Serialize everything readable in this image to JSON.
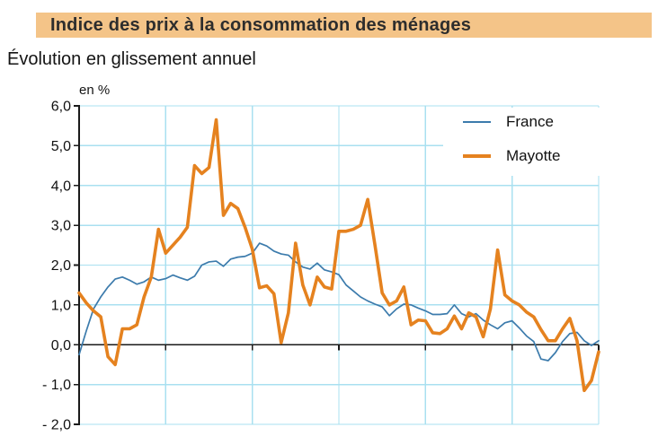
{
  "header": {
    "title": "Indice des prix à la consommation des ménages",
    "subtitle": "Évolution en glissement annuel"
  },
  "colors": {
    "title_band": "#F4C488",
    "grid": "#A9E0F0",
    "axis": "#1A1A1A",
    "tick_label": "#111111",
    "legend_background": "#FFFFFF"
  },
  "chart_data": {
    "type": "line",
    "title": "Indice des prix à la consommation des ménages",
    "subtitle": "Évolution en glissement annuel",
    "unit_label": "en %",
    "ylim": [
      -2,
      6
    ],
    "grid": true,
    "legend_position": "top-right",
    "x_axis": {
      "tick_labels_visible": false,
      "vertical_divisions": 6,
      "points_per_series": 73
    },
    "y_ticks": [
      {
        "value": 6,
        "label": "6,0"
      },
      {
        "value": 5,
        "label": "5,0"
      },
      {
        "value": 4,
        "label": "4,0"
      },
      {
        "value": 3,
        "label": "3,0"
      },
      {
        "value": 2,
        "label": "2,0"
      },
      {
        "value": 1,
        "label": "1,0"
      },
      {
        "value": 0,
        "label": "0,0"
      },
      {
        "value": -1,
        "label": "- 1,0"
      },
      {
        "value": -2,
        "label": "- 2,0"
      }
    ],
    "series": [
      {
        "name": "France",
        "color": "#3C7BAC",
        "stroke_width": 1.7,
        "values": [
          -0.25,
          0.35,
          0.9,
          1.2,
          1.45,
          1.65,
          1.7,
          1.62,
          1.52,
          1.58,
          1.7,
          1.62,
          1.66,
          1.75,
          1.68,
          1.62,
          1.72,
          2.0,
          2.08,
          2.1,
          1.97,
          2.15,
          2.2,
          2.22,
          2.3,
          2.55,
          2.48,
          2.35,
          2.28,
          2.25,
          2.08,
          1.95,
          1.9,
          2.05,
          1.88,
          1.83,
          1.76,
          1.5,
          1.35,
          1.2,
          1.1,
          1.02,
          0.95,
          0.73,
          0.9,
          1.02,
          1.0,
          0.92,
          0.85,
          0.76,
          0.76,
          0.78,
          1.0,
          0.78,
          0.7,
          0.78,
          0.62,
          0.5,
          0.4,
          0.55,
          0.6,
          0.42,
          0.22,
          0.08,
          -0.36,
          -0.4,
          -0.2,
          0.08,
          0.28,
          0.31,
          0.1,
          -0.02,
          0.1
        ]
      },
      {
        "name": "Mayotte",
        "color": "#E5821F",
        "stroke_width": 3.6,
        "values": [
          1.3,
          1.05,
          0.85,
          0.7,
          -0.3,
          -0.5,
          0.4,
          0.4,
          0.5,
          1.2,
          1.7,
          2.9,
          2.3,
          2.5,
          2.7,
          2.95,
          4.5,
          4.3,
          4.45,
          5.65,
          3.25,
          3.55,
          3.42,
          2.95,
          2.4,
          1.43,
          1.48,
          1.28,
          0.05,
          0.8,
          2.55,
          1.5,
          1.0,
          1.7,
          1.45,
          1.4,
          2.85,
          2.85,
          2.9,
          3.0,
          3.65,
          2.5,
          1.3,
          1.0,
          1.1,
          1.45,
          0.5,
          0.62,
          0.6,
          0.3,
          0.28,
          0.4,
          0.72,
          0.4,
          0.8,
          0.7,
          0.2,
          0.9,
          2.38,
          1.25,
          1.1,
          1.0,
          0.82,
          0.7,
          0.38,
          0.1,
          0.1,
          0.4,
          0.66,
          0.1,
          -1.15,
          -0.9,
          -0.18
        ]
      }
    ]
  }
}
